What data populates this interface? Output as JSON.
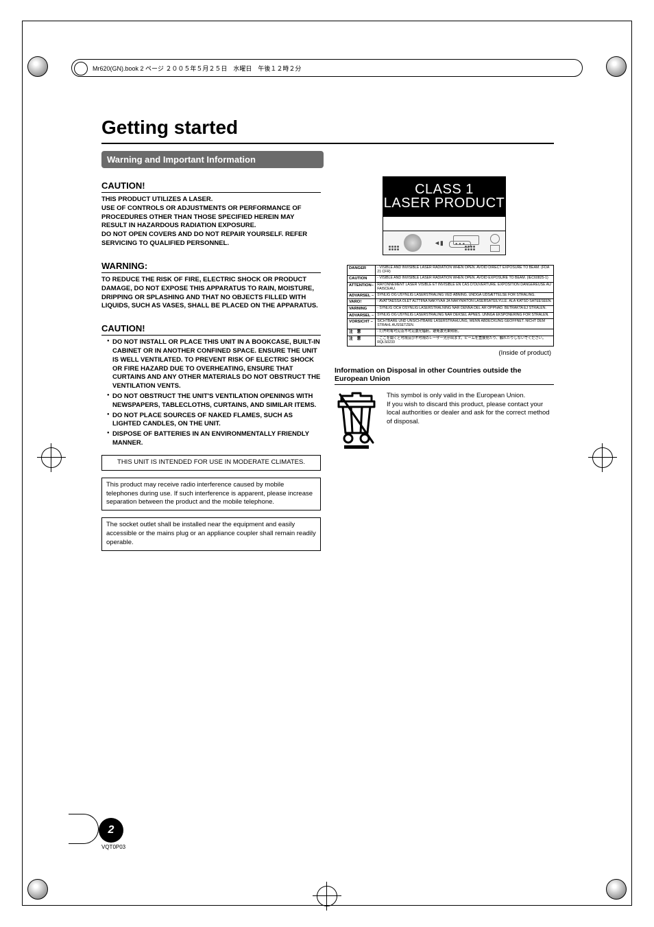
{
  "header_jp": "Mr620(GN).book  2 ページ  ２００５年５月２５日　水曜日　午後１２時２分",
  "page_title": "Getting started",
  "section_bar": "Warning and Important Information",
  "caution1_head": "CAUTION!",
  "caution1_body": "THIS PRODUCT UTILIZES A LASER.\nUSE OF CONTROLS OR ADJUSTMENTS OR PERFORMANCE OF PROCEDURES OTHER THAN THOSE SPECIFIED HEREIN MAY RESULT IN HAZARDOUS RADIATION EXPOSURE.\nDO NOT OPEN COVERS AND DO NOT REPAIR YOURSELF. REFER SERVICING TO QUALIFIED PERSONNEL.",
  "warning_head": "WARNING:",
  "warning_body": "TO REDUCE THE RISK OF FIRE, ELECTRIC SHOCK OR PRODUCT DAMAGE, DO NOT EXPOSE THIS APPARATUS TO RAIN, MOISTURE, DRIPPING OR SPLASHING AND THAT NO OBJECTS FILLED WITH LIQUIDS, SUCH AS VASES, SHALL BE PLACED ON THE APPARATUS.",
  "caution2_head": "CAUTION!",
  "caution2_items": [
    "DO NOT INSTALL OR PLACE THIS UNIT IN A BOOKCASE, BUILT-IN CABINET OR IN ANOTHER CONFINED SPACE. ENSURE THE UNIT IS WELL VENTILATED. TO PREVENT RISK OF ELECTRIC SHOCK OR FIRE HAZARD DUE TO OVERHEATING, ENSURE THAT CURTAINS AND ANY OTHER MATERIALS DO NOT OBSTRUCT THE VENTILATION VENTS.",
    "DO NOT OBSTRUCT THE UNIT'S VENTILATION OPENINGS WITH NEWSPAPERS, TABLECLOTHS, CURTAINS, AND SIMILAR ITEMS.",
    "DO NOT PLACE SOURCES OF NAKED FLAMES, SUCH AS LIGHTED CANDLES, ON THE UNIT.",
    "DISPOSE OF BATTERIES IN AN ENVIRONMENTALLY FRIENDLY MANNER."
  ],
  "box_climate": "THIS UNIT IS INTENDED FOR USE IN MODERATE CLIMATES.",
  "box_radio": "This product may receive radio interference caused by mobile telephones during use. If such interference is apparent, please increase separation between the product and the mobile telephone.",
  "box_socket": "The socket outlet shall be installed near the equipment and easily accessible or the mains plug or an appliance coupler shall remain readily operable.",
  "laser_line1": "CLASS 1",
  "laser_line2": "LASER PRODUCT",
  "langrows": [
    [
      "DANGER",
      "- VISIBLE AND INVISIBLE LASER RADIATION WHEN OPEN. AVOID DIRECT EXPOSURE TO BEAM.                                (FDA 21 CFR)"
    ],
    [
      "CAUTION",
      "- VISIBLE AND INVISIBLE LASER RADIATION WHEN OPEN. AVOID EXPOSURE TO BEAM.                                      (IEC60825-1)"
    ],
    [
      "ATTENTION–",
      "RAYONNEMENT LASER VISIBLE ET INVISIBLE EN CAS D'OUVERTURE. EXPOSITION DANGEREUSE AU FAISCEAU."
    ],
    [
      "ADVARSEL –",
      "SYNLIG OG USYNLIG LASERSTRÅLING VED ÅBNING. UNDGÅ UDSÆTTELSE FOR STRÅLING."
    ],
    [
      "VARO!",
      "- AVATTAESSA OLET ALTTIINA NÄKYVÄÄ JA NÄKYMÄTÖN LASERSÄTEILYLLE. ÄLÄ KATSO SÄTEESEEN."
    ],
    [
      "VARNING",
      "- SYNLIG OCH OSYNLIG LASERSTRÅLNING NÄR DENNA DEL ÄR ÖPPNAD. BETRAKTA EJ STRÅLEN."
    ],
    [
      "ADVARSEL –",
      "SYNLIG OG USYNLIG LASERSTRÅLING NÅR DEKSEL ÅPNES. UNNGÅ EKSPONERING FOR STRÅLEN."
    ],
    [
      "VORSICHT –",
      "SICHTBARE UND UNSICHTBARE LASERSTRAHLUNG, WENN ABDECKUNG GEÖFFNET. NICHT DEM STRAHL AUSSETZEN."
    ],
    [
      "注　意",
      "- 打开时有可见及不可见激光辐射。避免激光束照射。"
    ],
    [
      "注　意",
      "- ここを開くと可視及び不可視のレーザー光が出ます。ビームを直接見たり、触れたりしないでください。　　RQLS0233"
    ]
  ],
  "inside_note": "(Inside of product)",
  "disposal_head": "Information on Disposal in other Countries outside the European Union",
  "disposal_p1": "This symbol is only valid in the European Union.",
  "disposal_p2": "If you wish to discard this product, please contact your local authorities or dealer and ask for the correct method of disposal.",
  "page_num": "2",
  "page_code": "VQT0P03",
  "colors": {
    "section_bg": "#6b6b6b",
    "laser_bg": "#000000",
    "text": "#000000"
  }
}
